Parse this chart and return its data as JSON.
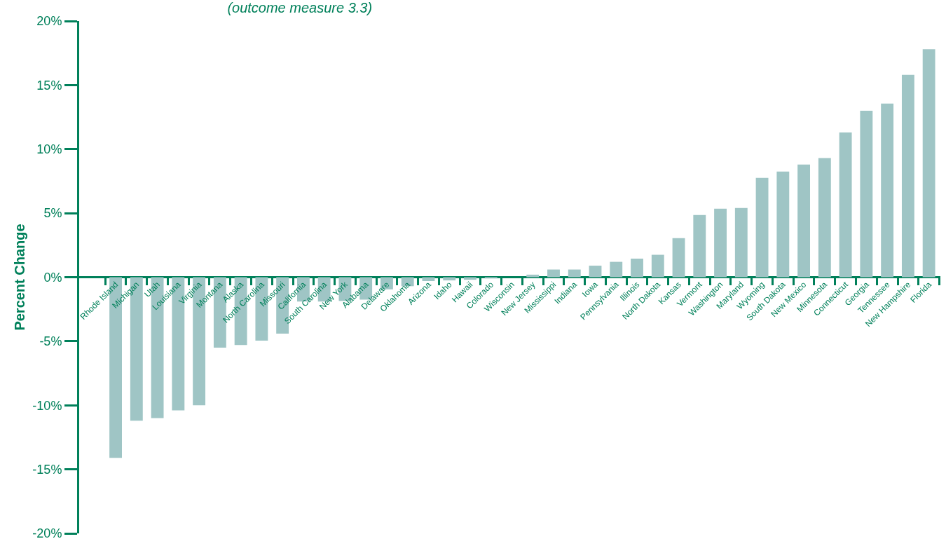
{
  "chart_data": {
    "type": "bar",
    "title": "(outcome measure 3.3)",
    "ylabel": "Percent Change",
    "categories": [
      "Rhode Island",
      "Michigan",
      "Utah",
      "Louisiana",
      "Virginia",
      "Montana",
      "Alaska",
      "North Carolina",
      "Missouri",
      "California",
      "South Carolina",
      "New York",
      "Alabama",
      "Delaware",
      "Oklahoma",
      "Arizona",
      "Idaho",
      "Hawaii",
      "Colorado",
      "Wisconsin",
      "New Jersey",
      "Mississippi",
      "Indiana",
      "Iowa",
      "Pennsylvania",
      "Illinois",
      "North Dakota",
      "Kansas",
      "Vermont",
      "Washington",
      "Maryland",
      "Wyoming",
      "South Dakota",
      "New Mexico",
      "Minnesota",
      "Connecticut",
      "Georgia",
      "Tennessee",
      "New Hampshire",
      "Florida"
    ],
    "values": [
      -14.1,
      -11.2,
      -11.0,
      -10.4,
      -10.0,
      -5.5,
      -5.3,
      -4.95,
      -4.4,
      -1.9,
      -1.9,
      -1.85,
      -1.75,
      -0.95,
      -0.7,
      -0.3,
      -0.25,
      -0.2,
      -0.1,
      0.0,
      0.2,
      0.6,
      0.6,
      0.9,
      1.2,
      1.45,
      1.75,
      3.05,
      4.85,
      5.35,
      5.4,
      7.75,
      8.25,
      8.8,
      9.3,
      11.3,
      13.0,
      13.55,
      15.8,
      17.8
    ],
    "color": "#9fc5c5",
    "ylim": [
      -20,
      20
    ],
    "yticks": [
      {
        "value": -20,
        "label": "-20%"
      },
      {
        "value": -15,
        "label": "-15%"
      },
      {
        "value": -10,
        "label": "-10%"
      },
      {
        "value": -5,
        "label": "-5%"
      },
      {
        "value": 0,
        "label": "0%"
      },
      {
        "value": 5,
        "label": "5%"
      },
      {
        "value": 10,
        "label": "10%"
      },
      {
        "value": 15,
        "label": "15%"
      },
      {
        "value": 20,
        "label": "20%"
      }
    ],
    "grid": false
  }
}
